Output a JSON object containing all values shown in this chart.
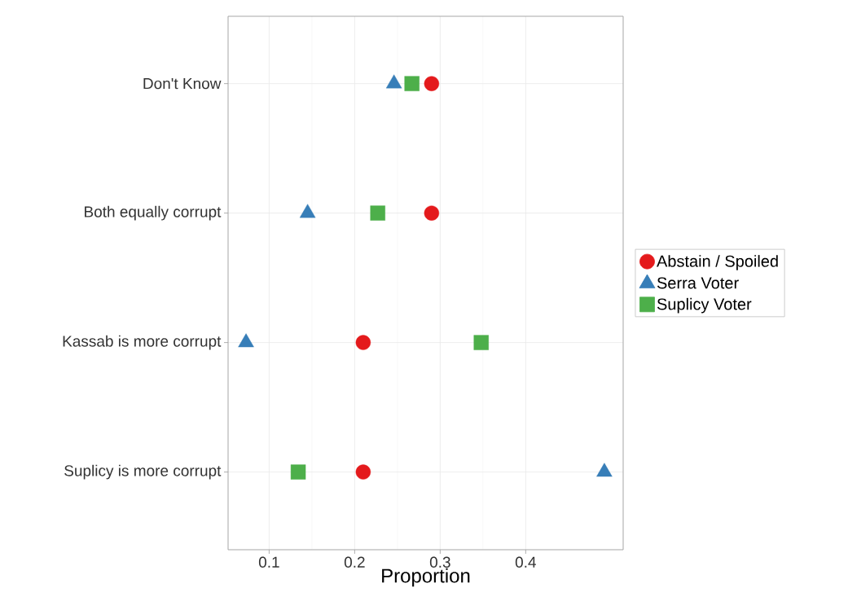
{
  "chart_data": {
    "type": "scatter",
    "orientation": "horizontal",
    "xlabel": "Proportion",
    "categories": [
      "Don't Know",
      "Both equally corrupt",
      "Kassab is more corrupt",
      "Suplicy is more corrupt"
    ],
    "xlim": [
      0.052,
      0.514
    ],
    "xticks": [
      0.1,
      0.2,
      0.3,
      0.4
    ],
    "grid": true,
    "legend": "right",
    "series": [
      {
        "name": "Abstain / Spoiled",
        "color": "#e41a1c",
        "marker": "circle",
        "values": [
          0.29,
          0.29,
          0.21,
          0.21
        ]
      },
      {
        "name": "Serra Voter",
        "color": "#377eb8",
        "marker": "triangle",
        "values": [
          0.246,
          0.145,
          0.073,
          0.492
        ]
      },
      {
        "name": "Suplicy Voter",
        "color": "#4daf4a",
        "marker": "square",
        "values": [
          0.267,
          0.227,
          0.348,
          0.134
        ]
      }
    ]
  }
}
